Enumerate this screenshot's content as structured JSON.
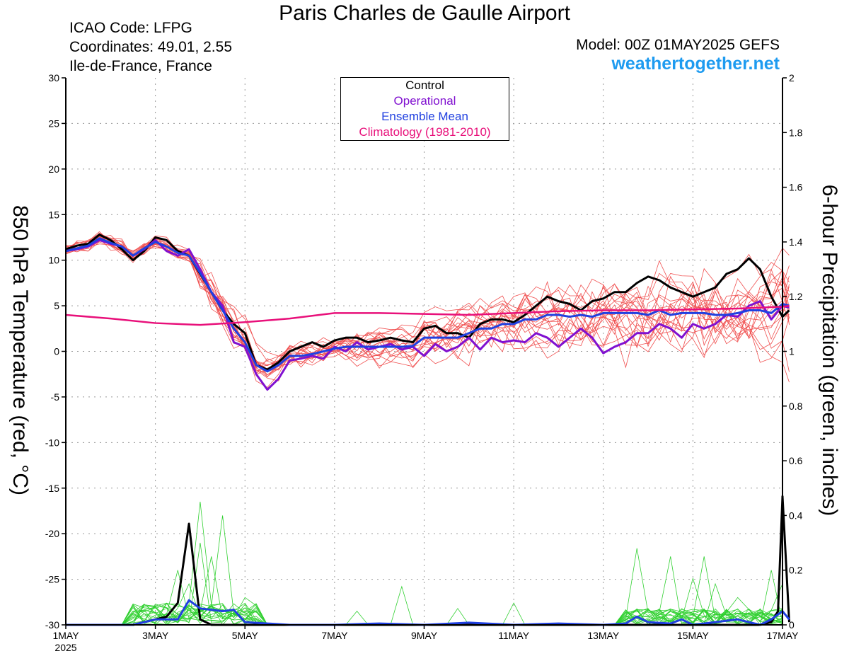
{
  "header": {
    "title": "Paris Charles de Gaulle Airport",
    "icao": "ICAO Code: LFPG",
    "coordinates": "Coordinates: 49.01, 2.55",
    "region": "Ile-de-France, France",
    "model": "Model: 00Z 01MAY2025 GEFS",
    "site": "weathertogether.net"
  },
  "colors": {
    "control": "#000000",
    "operational": "#8010d0",
    "ensemble_mean": "#2040e0",
    "climatology": "#e8107a",
    "members_temp": "#f05050",
    "members_precip": "#30d030",
    "site": "#1e9bf0"
  },
  "chart_data": {
    "type": "line",
    "x_unit": "day of May 2025",
    "xlim": [
      1,
      17
    ],
    "x_ticks": [
      {
        "day": 1,
        "label": "1MAY"
      },
      {
        "day": 3,
        "label": "3MAY"
      },
      {
        "day": 5,
        "label": "5MAY"
      },
      {
        "day": 7,
        "label": "7MAY"
      },
      {
        "day": 9,
        "label": "9MAY"
      },
      {
        "day": 11,
        "label": "11MAY"
      },
      {
        "day": 13,
        "label": "13MAY"
      },
      {
        "day": 15,
        "label": "15MAY"
      },
      {
        "day": 17,
        "label": "17MAY"
      }
    ],
    "x_year_label": "2025",
    "ylabel_left": "850 hPa Temperature (red, °C)",
    "ylabel_right": "6-hour Precipitation (green, inches)",
    "ylim_left": [
      -30,
      30
    ],
    "ylim_right": [
      0,
      2
    ],
    "y_ticks_left": [
      -30,
      -25,
      -20,
      -15,
      -10,
      -5,
      0,
      5,
      10,
      15,
      20,
      25,
      30
    ],
    "y_ticks_right": [
      "0",
      "0.2",
      "0.4",
      "0.6",
      "0.8",
      "1",
      "1.2",
      "1.4",
      "1.6",
      "1.8",
      "2"
    ],
    "grid": true,
    "legend": {
      "placement": "top-center",
      "entries": [
        "Control",
        "Operational",
        "Ensemble Mean",
        "Climatology (1981-2010)"
      ]
    },
    "temperature_series": [
      {
        "name": "Control",
        "points": [
          [
            1,
            11.2
          ],
          [
            1.25,
            11.6
          ],
          [
            1.5,
            11.8
          ],
          [
            1.75,
            12.8
          ],
          [
            2,
            12.2
          ],
          [
            2.25,
            11.2
          ],
          [
            2.5,
            10
          ],
          [
            2.75,
            11
          ],
          [
            3,
            12.5
          ],
          [
            3.25,
            12.2
          ],
          [
            3.5,
            11
          ],
          [
            3.75,
            10.5
          ],
          [
            4,
            8.5
          ],
          [
            4.25,
            6.5
          ],
          [
            4.5,
            4.5
          ],
          [
            4.75,
            3
          ],
          [
            5,
            2
          ],
          [
            5.25,
            -1.5
          ],
          [
            5.5,
            -2
          ],
          [
            5.75,
            -1.2
          ],
          [
            6,
            0
          ],
          [
            6.25,
            0.5
          ],
          [
            6.5,
            1
          ],
          [
            6.75,
            0.5
          ],
          [
            7,
            1.2
          ],
          [
            7.25,
            1.5
          ],
          [
            7.5,
            1.5
          ],
          [
            7.75,
            1
          ],
          [
            8,
            1.2
          ],
          [
            8.25,
            1.5
          ],
          [
            8.5,
            1.2
          ],
          [
            8.75,
            1
          ],
          [
            9,
            2.5
          ],
          [
            9.25,
            2.8
          ],
          [
            9.5,
            2
          ],
          [
            9.75,
            2
          ],
          [
            10,
            1.5
          ],
          [
            10.25,
            3
          ],
          [
            10.5,
            3.5
          ],
          [
            10.75,
            3.5
          ],
          [
            11,
            3.2
          ],
          [
            11.25,
            4
          ],
          [
            11.5,
            5
          ],
          [
            11.75,
            6
          ],
          [
            12,
            5.5
          ],
          [
            12.25,
            5.2
          ],
          [
            12.5,
            4.5
          ],
          [
            12.75,
            5.5
          ],
          [
            13,
            5.8
          ],
          [
            13.25,
            6.5
          ],
          [
            13.5,
            6.5
          ],
          [
            13.75,
            7.5
          ],
          [
            14,
            8.2
          ],
          [
            14.25,
            7.8
          ],
          [
            14.5,
            7
          ],
          [
            14.75,
            6.5
          ],
          [
            15,
            6
          ],
          [
            15.25,
            6.5
          ],
          [
            15.5,
            7
          ],
          [
            15.75,
            8.5
          ],
          [
            16,
            9
          ],
          [
            16.25,
            10.2
          ],
          [
            16.5,
            9
          ],
          [
            16.75,
            6
          ],
          [
            17,
            3.8
          ],
          [
            17.25,
            4.5
          ]
        ]
      },
      {
        "name": "Operational",
        "points": [
          [
            1,
            11
          ],
          [
            1.25,
            11.2
          ],
          [
            1.5,
            11.5
          ],
          [
            1.75,
            12.2
          ],
          [
            2,
            11.8
          ],
          [
            2.25,
            11.5
          ],
          [
            2.5,
            10.5
          ],
          [
            2.75,
            11.2
          ],
          [
            3,
            12.2
          ],
          [
            3.25,
            11
          ],
          [
            3.5,
            10.5
          ],
          [
            3.75,
            11.2
          ],
          [
            4,
            9
          ],
          [
            4.25,
            6.5
          ],
          [
            4.5,
            5
          ],
          [
            4.75,
            1
          ],
          [
            5,
            0.5
          ],
          [
            5.25,
            -2.5
          ],
          [
            5.5,
            -4.2
          ],
          [
            5.75,
            -3
          ],
          [
            6,
            -1
          ],
          [
            6.25,
            -0.8
          ],
          [
            6.5,
            -0.5
          ],
          [
            6.75,
            -0.8
          ],
          [
            7,
            0.5
          ],
          [
            7.25,
            0
          ],
          [
            7.5,
            1
          ],
          [
            7.75,
            0.2
          ],
          [
            8,
            0.5
          ],
          [
            8.25,
            0.8
          ],
          [
            8.5,
            0.2
          ],
          [
            8.75,
            0.5
          ],
          [
            9,
            -0.5
          ],
          [
            9.25,
            0.8
          ],
          [
            9.5,
            0
          ],
          [
            9.75,
            0.5
          ],
          [
            10,
            1.5
          ],
          [
            10.25,
            0.2
          ],
          [
            10.5,
            1.5
          ],
          [
            10.75,
            1
          ],
          [
            11,
            1.2
          ],
          [
            11.25,
            1
          ],
          [
            11.5,
            2
          ],
          [
            11.75,
            1.5
          ],
          [
            12,
            0.5
          ],
          [
            12.25,
            1.5
          ],
          [
            12.5,
            2.5
          ],
          [
            12.75,
            1.5
          ],
          [
            13,
            -0.2
          ],
          [
            13.25,
            0.5
          ],
          [
            13.5,
            1
          ],
          [
            13.75,
            2
          ],
          [
            14,
            2
          ],
          [
            14.25,
            3
          ],
          [
            14.5,
            2.5
          ],
          [
            14.75,
            1.5
          ],
          [
            15,
            3
          ],
          [
            15.25,
            2.5
          ],
          [
            15.5,
            3
          ],
          [
            15.75,
            4
          ],
          [
            16,
            3.8
          ],
          [
            16.25,
            5
          ],
          [
            16.5,
            5.5
          ],
          [
            16.75,
            3.5
          ],
          [
            17,
            5
          ],
          [
            17.25,
            4.8
          ]
        ]
      },
      {
        "name": "Ensemble Mean",
        "points": [
          [
            1,
            11
          ],
          [
            1.25,
            11.3
          ],
          [
            1.5,
            11.6
          ],
          [
            1.75,
            12.4
          ],
          [
            2,
            11.9
          ],
          [
            2.25,
            11.5
          ],
          [
            2.5,
            10.5
          ],
          [
            2.75,
            11.3
          ],
          [
            3,
            12
          ],
          [
            3.25,
            11.5
          ],
          [
            3.5,
            10.8
          ],
          [
            3.75,
            10.5
          ],
          [
            4,
            8.6
          ],
          [
            4.25,
            6.5
          ],
          [
            4.5,
            4.5
          ],
          [
            4.75,
            2.5
          ],
          [
            5,
            1
          ],
          [
            5.25,
            -1.5
          ],
          [
            5.5,
            -2.2
          ],
          [
            5.75,
            -1.5
          ],
          [
            6,
            -0.5
          ],
          [
            6.25,
            -0.5
          ],
          [
            6.5,
            -0.3
          ],
          [
            6.75,
            0
          ],
          [
            7,
            0.3
          ],
          [
            7.25,
            0.5
          ],
          [
            7.5,
            0.5
          ],
          [
            7.75,
            0.5
          ],
          [
            8,
            0.5
          ],
          [
            8.25,
            0.5
          ],
          [
            8.5,
            0.5
          ],
          [
            8.75,
            0.6
          ],
          [
            9,
            1.5
          ],
          [
            9.25,
            1.5
          ],
          [
            9.5,
            1.5
          ],
          [
            9.75,
            1.5
          ],
          [
            10,
            2
          ],
          [
            10.25,
            2.5
          ],
          [
            10.5,
            2.5
          ],
          [
            10.75,
            3
          ],
          [
            11,
            3
          ],
          [
            11.25,
            3.5
          ],
          [
            11.5,
            3.5
          ],
          [
            11.75,
            4
          ],
          [
            12,
            4
          ],
          [
            12.25,
            3.8
          ],
          [
            12.5,
            4
          ],
          [
            12.75,
            3.8
          ],
          [
            13,
            4.2
          ],
          [
            13.25,
            4.2
          ],
          [
            13.5,
            4.2
          ],
          [
            13.75,
            4.2
          ],
          [
            14,
            4
          ],
          [
            14.25,
            4.5
          ],
          [
            14.5,
            4
          ],
          [
            14.75,
            4.2
          ],
          [
            15,
            4.2
          ],
          [
            15.25,
            4.2
          ],
          [
            15.5,
            4
          ],
          [
            15.75,
            4
          ],
          [
            16,
            4.2
          ],
          [
            16.25,
            4.5
          ],
          [
            16.5,
            4.5
          ],
          [
            16.75,
            4.2
          ],
          [
            17,
            5.2
          ],
          [
            17.25,
            5
          ]
        ]
      },
      {
        "name": "Climatology (1981-2010)",
        "points": [
          [
            1,
            4
          ],
          [
            2,
            3.6
          ],
          [
            3,
            3.1
          ],
          [
            4,
            2.9
          ],
          [
            5,
            3.2
          ],
          [
            6,
            3.6
          ],
          [
            7,
            4.2
          ],
          [
            8,
            4.2
          ],
          [
            9,
            4.1
          ],
          [
            10,
            4
          ],
          [
            11,
            4.2
          ],
          [
            12,
            4.4
          ],
          [
            13,
            4.5
          ],
          [
            14,
            4.5
          ],
          [
            15,
            4.6
          ],
          [
            16,
            4.7
          ],
          [
            17,
            4.9
          ],
          [
            17.25,
            5
          ]
        ]
      }
    ],
    "precipitation_series": [
      {
        "name": "Control",
        "points": [
          [
            1,
            0
          ],
          [
            2.5,
            0
          ],
          [
            2.75,
            0.01
          ],
          [
            3,
            0.02
          ],
          [
            3.25,
            0.03
          ],
          [
            3.5,
            0.08
          ],
          [
            3.75,
            0.37
          ],
          [
            4,
            0.02
          ],
          [
            4.25,
            0
          ],
          [
            16.5,
            0
          ],
          [
            16.75,
            0.01
          ],
          [
            16.9,
            0.05
          ],
          [
            17,
            0.47
          ],
          [
            17.25,
            0.01
          ]
        ]
      },
      {
        "name": "Ensemble Mean",
        "points": [
          [
            1,
            0
          ],
          [
            2.5,
            0
          ],
          [
            3,
            0.02
          ],
          [
            3.5,
            0.02
          ],
          [
            3.75,
            0.09
          ],
          [
            4,
            0.06
          ],
          [
            4.25,
            0.055
          ],
          [
            4.5,
            0.05
          ],
          [
            4.75,
            0.055
          ],
          [
            5,
            0.01
          ],
          [
            6,
            0
          ],
          [
            7,
            0
          ],
          [
            8,
            0.005
          ],
          [
            9,
            0
          ],
          [
            10,
            0.008
          ],
          [
            11,
            0
          ],
          [
            12,
            0.005
          ],
          [
            13,
            0
          ],
          [
            13.5,
            0.005
          ],
          [
            13.75,
            0.03
          ],
          [
            14,
            0.01
          ],
          [
            14.5,
            0.005
          ],
          [
            14.75,
            0.02
          ],
          [
            15,
            0
          ],
          [
            15.5,
            0.01
          ],
          [
            16,
            0.02
          ],
          [
            16.5,
            0
          ],
          [
            16.75,
            0.02
          ],
          [
            17,
            0.05
          ],
          [
            17.25,
            0.02
          ]
        ]
      }
    ],
    "ensemble_members_temperature_count": 20,
    "ensemble_members_precipitation_count": 20
  }
}
